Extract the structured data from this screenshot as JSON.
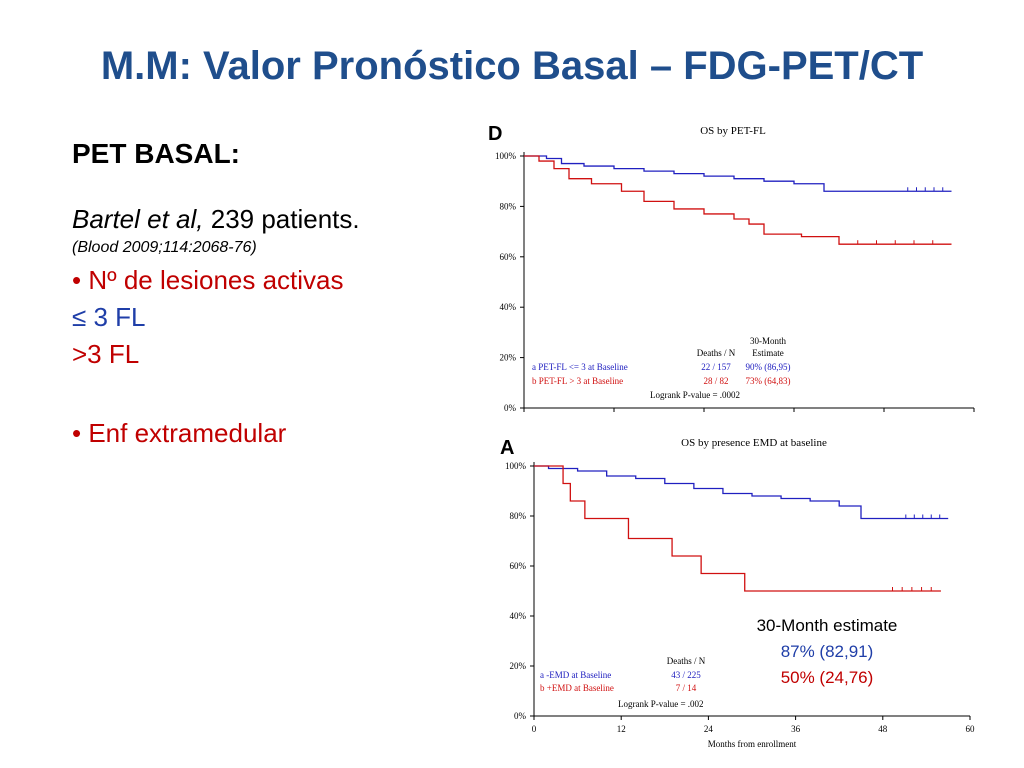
{
  "slide": {
    "title": "M.M: Valor Pronóstico Basal – FDG-PET/CT",
    "heading": "PET BASAL:",
    "study_author": "Bartel et al,",
    "study_patients": " 239 patients.",
    "reference": "(Blood 2009;114:2068-76)",
    "bullet1": "• Nº de lesiones activas",
    "fl_low": "≤ 3 FL",
    "fl_high": ">3 FL",
    "bullet2": "• Enf extramedular"
  },
  "estimate_overlay": {
    "title": "30-Month estimate",
    "blue": "87% (82,91)",
    "red": "50% (24,76)"
  },
  "colors": {
    "title": "#1f4e8c",
    "blue": "#1f3ea8",
    "red": "#c00000",
    "curve_blue": "#2020c0",
    "curve_red": "#d01010"
  },
  "chart_data": [
    {
      "type": "line",
      "panel_letter": "D",
      "title": "OS by PET-FL",
      "y_tick_labels": [
        "100%",
        "80%",
        "60%",
        "40%",
        "20%",
        "0%"
      ],
      "ylim": [
        0,
        100
      ],
      "xlim": [
        0,
        60
      ],
      "table": {
        "headers": [
          "Deaths / N",
          "30-Month Estimate"
        ],
        "header_top": "30-Month",
        "header_bottom": "Estimate",
        "rows": [
          {
            "label": "a PET-FL <= 3 at Baseline",
            "deaths_n": "22 / 157",
            "estimate": "90%  (86,95)"
          },
          {
            "label": "b PET-FL > 3 at Baseline",
            "deaths_n": "28 / 82",
            "estimate": "73%  (64,83)"
          }
        ],
        "logrank": "Logrank P-value = .0002"
      },
      "series": [
        {
          "name": "a PET-FL <= 3 at Baseline",
          "x": [
            0,
            3,
            5,
            8,
            12,
            16,
            20,
            24,
            28,
            32,
            36,
            40,
            46,
            50,
            57
          ],
          "values": [
            100,
            99,
            97,
            96,
            95,
            94,
            93,
            92,
            91,
            90,
            89,
            86,
            86,
            86,
            86
          ]
        },
        {
          "name": "b PET-FL > 3 at Baseline",
          "x": [
            0,
            2,
            4,
            6,
            9,
            13,
            16,
            20,
            24,
            28,
            30,
            32,
            37,
            42,
            57
          ],
          "values": [
            100,
            98,
            95,
            91,
            89,
            86,
            82,
            79,
            77,
            75,
            73,
            69,
            68,
            65,
            65
          ]
        }
      ]
    },
    {
      "type": "line",
      "panel_letter": "A",
      "title": "OS by presence EMD at baseline",
      "xlabel": "Months from enrollment",
      "x_tick_labels": [
        "0",
        "12",
        "24",
        "36",
        "48",
        "60"
      ],
      "x_ticks": [
        0,
        12,
        24,
        36,
        48,
        60
      ],
      "y_tick_labels": [
        "100%",
        "80%",
        "60%",
        "40%",
        "20%",
        "0%"
      ],
      "ylim": [
        0,
        100
      ],
      "xlim": [
        0,
        60
      ],
      "table": {
        "headers": [
          "Deaths / N"
        ],
        "rows": [
          {
            "label": "a -EMD at Baseline",
            "deaths_n": "43 / 225"
          },
          {
            "label": "b +EMD at Baseline",
            "deaths_n": "7 / 14"
          }
        ],
        "logrank": "Logrank P-value = .002"
      },
      "series": [
        {
          "name": "a -EMD at Baseline",
          "x": [
            0,
            2,
            6,
            10,
            14,
            18,
            22,
            26,
            30,
            34,
            38,
            42,
            45,
            50,
            57
          ],
          "values": [
            100,
            99,
            98,
            96,
            95,
            93,
            91,
            89,
            88,
            87,
            86,
            84,
            79,
            79,
            79
          ]
        },
        {
          "name": "b +EMD at Baseline",
          "x": [
            0,
            4,
            5,
            7,
            13,
            19,
            23,
            29,
            40,
            48,
            56
          ],
          "values": [
            100,
            93,
            86,
            79,
            71,
            64,
            57,
            50,
            50,
            50,
            50
          ]
        }
      ]
    }
  ]
}
